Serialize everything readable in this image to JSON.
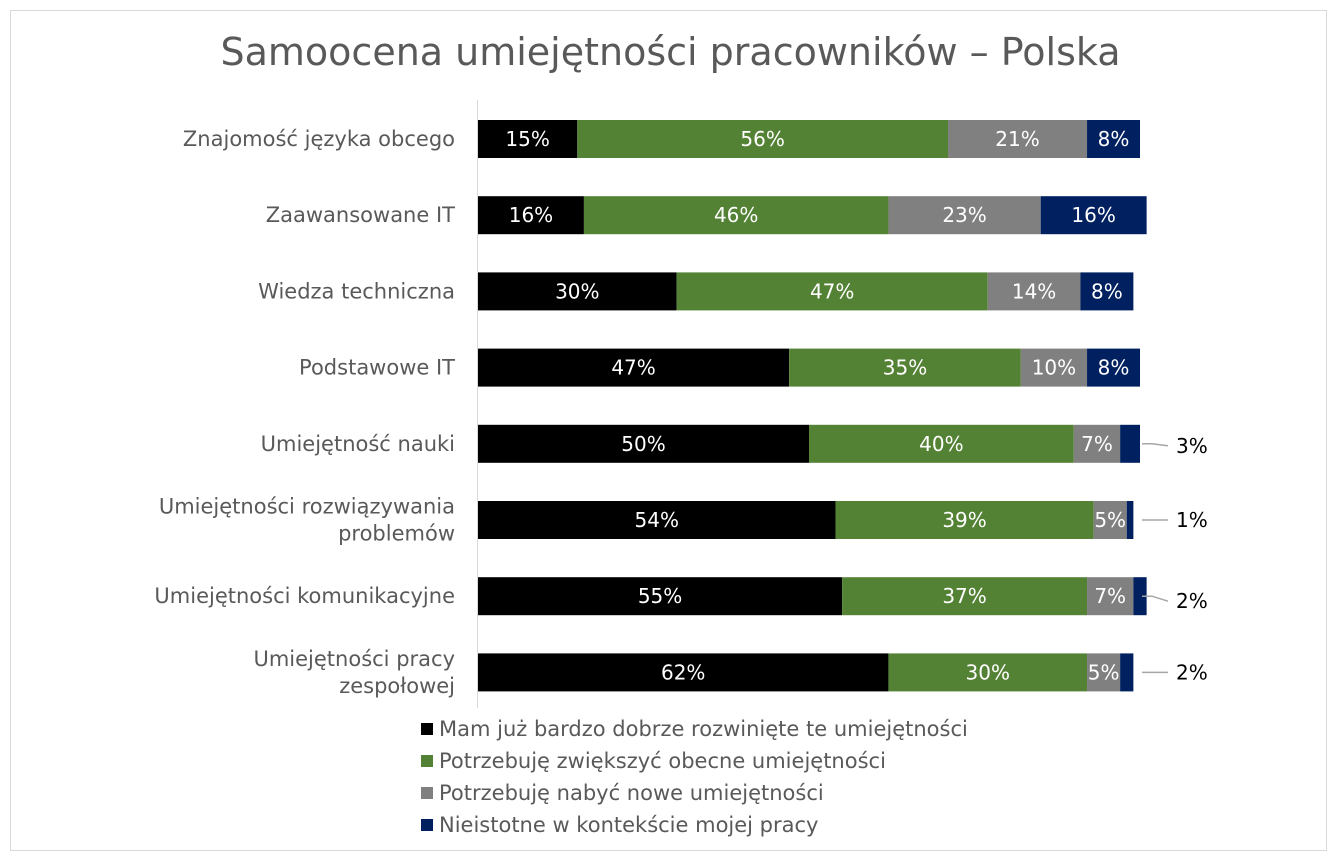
{
  "chart_data": {
    "type": "bar",
    "orientation": "horizontal",
    "stacked": true,
    "title": "Samoocena umiejętności pracowników – Polska",
    "categories": [
      "Znajomość języka obcego",
      "Zaawansowane IT",
      "Wiedza techniczna",
      "Podstawowe IT",
      "Umiejętność nauki",
      "Umiejętności rozwiązywania problemów",
      "Umiejętności komunikacyjne",
      "Umiejętności pracy zespołowej"
    ],
    "series": [
      {
        "name": "Mam już bardzo dobrze rozwinięte te umiejętności",
        "color": "#000000",
        "values": [
          15,
          16,
          30,
          47,
          50,
          54,
          55,
          62
        ]
      },
      {
        "name": "Potrzebuję zwiększyć obecne umiejętności",
        "color": "#548235",
        "values": [
          56,
          46,
          47,
          35,
          40,
          39,
          37,
          30
        ]
      },
      {
        "name": "Potrzebuję nabyć nowe umiejętności",
        "color": "#808080",
        "values": [
          21,
          23,
          14,
          10,
          7,
          5,
          7,
          5
        ]
      },
      {
        "name": "Nieistotne w kontekście mojej pracy",
        "color": "#002060",
        "values": [
          8,
          16,
          8,
          8,
          3,
          1,
          2,
          2
        ]
      }
    ],
    "value_suffix": "%",
    "legend_position": "bottom",
    "grid": false
  }
}
